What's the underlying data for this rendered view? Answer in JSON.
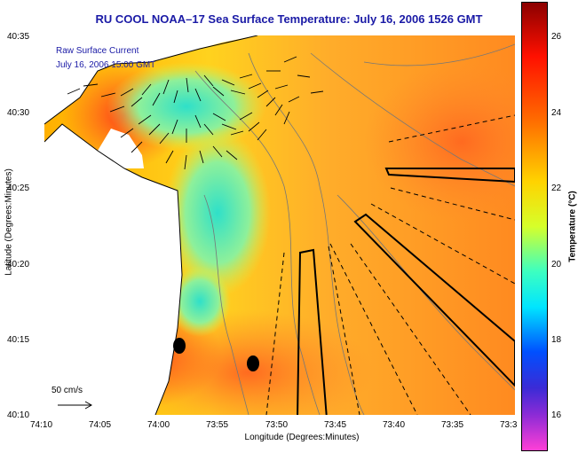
{
  "title": "RU COOL  NOAA–17  Sea Surface Temperature:  July 16, 2006 1526 GMT",
  "annotation": {
    "line1": "Raw Surface Current",
    "line2": "July 16, 2006 15:00 GMT"
  },
  "scale_label": "50 cm/s",
  "axes": {
    "xlabel": "Longitude (Degrees:Minutes)",
    "ylabel": "Latitude (Degrees:Minutes)",
    "xticks": [
      "74:10",
      "74:05",
      "74:00",
      "73:55",
      "73:50",
      "73:45",
      "73:40",
      "73:35",
      "73:3"
    ],
    "yticks": [
      "40:35",
      "40:30",
      "40:25",
      "40:20",
      "40:15",
      "40:10"
    ]
  },
  "colorbar": {
    "label": "Temperature (°C)",
    "ticks": [
      "26",
      "24",
      "22",
      "20",
      "18",
      "16"
    ]
  },
  "colors": {
    "title": "#1a1aa6",
    "land": "#ffffff",
    "ocean_warm": "#ff8a2a",
    "ocean_cool": "#2ad9c9"
  }
}
